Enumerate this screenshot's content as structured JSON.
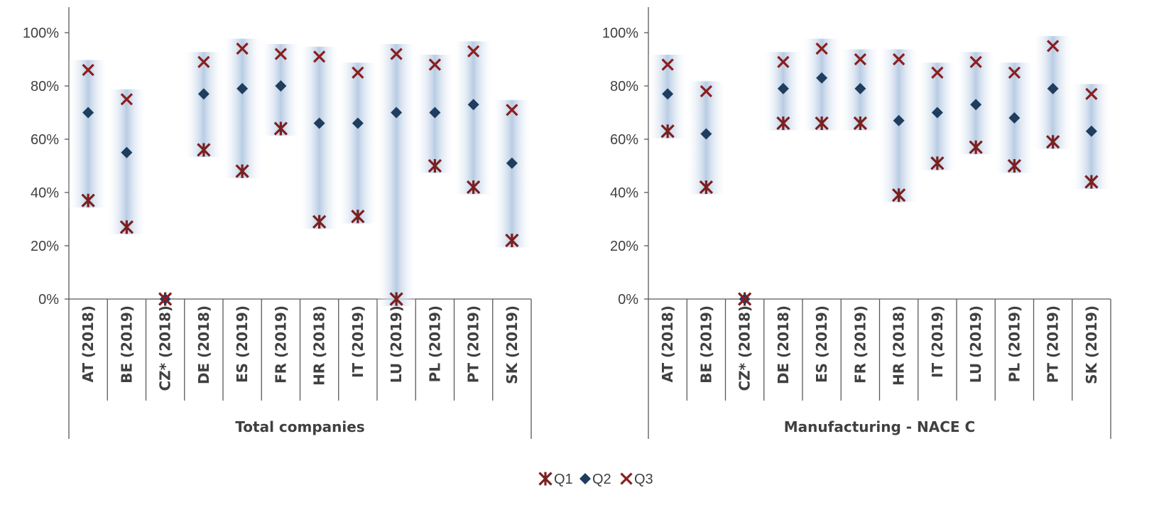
{
  "chart_data": {
    "type": "scatter",
    "y_tick_labels": [
      "0%",
      "20%",
      "40%",
      "60%",
      "80%",
      "100%"
    ],
    "ylim": [
      0,
      100
    ],
    "legend": [
      "Q1",
      "Q2",
      "Q3"
    ],
    "legend_position": "bottom-center",
    "colors": {
      "q1": "#7B1F1F",
      "q2": "#1F3D5E",
      "q3": "#8B1E1E",
      "band": "#B8CCE4"
    },
    "panels": [
      {
        "group_label": "Total companies",
        "categories": [
          "AT (2018)",
          "BE (2019)",
          "CZ* (2018)",
          "DE (2018)",
          "ES (2019)",
          "FR (2019)",
          "HR (2018)",
          "IT (2019)",
          "LU (2019)",
          "PL (2019)",
          "PT (2019)",
          "SK (2019)"
        ],
        "series": [
          {
            "name": "Q1",
            "marker": "asterisk",
            "values": [
              37,
              27,
              0,
              56,
              48,
              64,
              29,
              31,
              0,
              50,
              42,
              22
            ]
          },
          {
            "name": "Q2",
            "marker": "diamond",
            "values": [
              70,
              55,
              0,
              77,
              79,
              80,
              66,
              66,
              70,
              70,
              73,
              51
            ]
          },
          {
            "name": "Q3",
            "marker": "cross",
            "values": [
              86,
              75,
              0,
              89,
              94,
              92,
              91,
              85,
              92,
              88,
              93,
              71
            ]
          }
        ]
      },
      {
        "group_label": "Manufacturing - NACE C",
        "categories": [
          "AT (2018)",
          "BE (2019)",
          "CZ* (2018)",
          "DE (2018)",
          "ES (2019)",
          "FR (2019)",
          "HR (2018)",
          "IT (2019)",
          "LU (2019)",
          "PL (2019)",
          "PT (2019)",
          "SK (2019)"
        ],
        "series": [
          {
            "name": "Q1",
            "marker": "asterisk",
            "values": [
              63,
              42,
              0,
              66,
              66,
              66,
              39,
              51,
              57,
              50,
              59,
              44
            ]
          },
          {
            "name": "Q2",
            "marker": "diamond",
            "values": [
              77,
              62,
              0,
              79,
              83,
              79,
              67,
              70,
              73,
              68,
              79,
              63
            ]
          },
          {
            "name": "Q3",
            "marker": "cross",
            "values": [
              88,
              78,
              0,
              89,
              94,
              90,
              90,
              85,
              89,
              85,
              95,
              77
            ]
          }
        ]
      }
    ]
  }
}
